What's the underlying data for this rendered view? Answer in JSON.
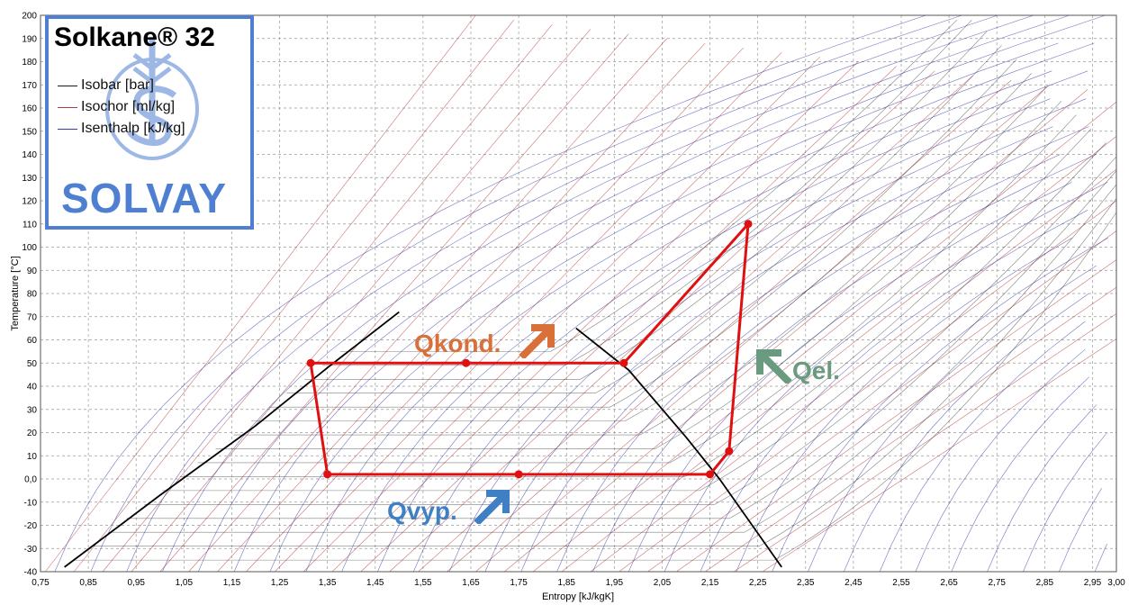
{
  "legend": {
    "title": "Solkane® 32",
    "items": [
      {
        "label": "Isobar [bar]",
        "color": "#1a1a1a"
      },
      {
        "label": "Isochor [ml/kg]",
        "color": "#b23a3a"
      },
      {
        "label": "Isenthalp [kJ/kg]",
        "color": "#3a3aa8"
      }
    ],
    "brand": "SOLVAY",
    "brand_color": "#4f7fd0"
  },
  "annotations": [
    {
      "text": "Qkond.",
      "color": "#d9703a",
      "arrow_icon": "arrow-up-right-icon"
    },
    {
      "text": "Qel.",
      "color": "#6a9a80",
      "arrow_icon": "arrow-up-left-icon"
    },
    {
      "text": "Qvyp.",
      "color": "#3f7fc4",
      "arrow_icon": "arrow-up-right-icon"
    }
  ],
  "chart_data": {
    "type": "line",
    "title": "",
    "xlabel": "Entropy [kJ/kgK]",
    "ylabel": "Temperature [°C]",
    "xlim": [
      0.75,
      3.0
    ],
    "ylim": [
      -40,
      200
    ],
    "xticks": [
      "0,75",
      "0,85",
      "0,95",
      "1,05",
      "1,15",
      "1,25",
      "1,35",
      "1,45",
      "1,55",
      "1,65",
      "1,75",
      "1,85",
      "1,95",
      "2,05",
      "2,15",
      "2,25",
      "2,35",
      "2,45",
      "2,55",
      "2,65",
      "2,75",
      "2,85",
      "2,95",
      "3,00"
    ],
    "yticks": [
      "-40",
      "-30",
      "-20",
      "-10",
      "0,0",
      "10",
      "20",
      "30",
      "40",
      "50",
      "60",
      "70",
      "80",
      "90",
      "100",
      "110",
      "120",
      "130",
      "140",
      "150",
      "160",
      "170",
      "180",
      "190",
      "200"
    ],
    "grid": true,
    "saturation_dome": {
      "liquid": {
        "x": [
          0.8,
          1.0,
          1.2,
          1.35,
          1.5
        ],
        "y": [
          -38,
          -7,
          23,
          48,
          72
        ]
      },
      "vapor": {
        "x": [
          1.87,
          1.98,
          2.1,
          2.17,
          2.3
        ],
        "y": [
          65,
          47,
          18,
          0,
          -38
        ]
      }
    },
    "series": [
      {
        "name": "",
        "color": "#e01010",
        "x": [
          1.315,
          1.35,
          2.15,
          2.19,
          2.23,
          1.97,
          1.315
        ],
        "y": [
          50,
          2,
          2,
          12,
          110,
          50,
          50
        ]
      }
    ],
    "points": {
      "x": [
        1.315,
        1.64,
        1.97,
        1.35,
        1.75,
        2.15,
        2.19,
        2.23
      ],
      "y": [
        50,
        50,
        50,
        2,
        2,
        2,
        12,
        110
      ]
    }
  }
}
